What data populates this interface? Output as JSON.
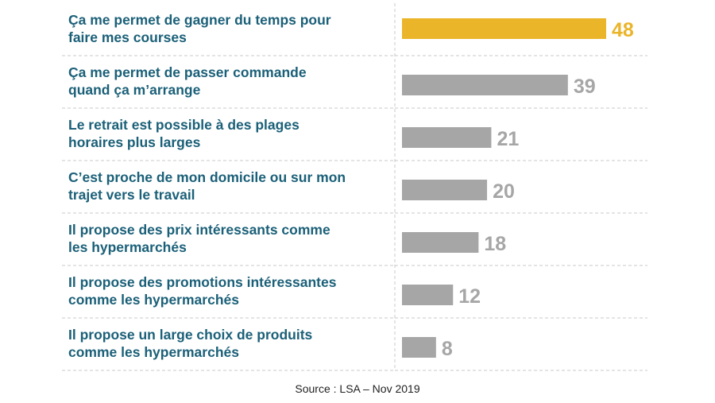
{
  "chart_data": {
    "type": "bar",
    "orientation": "horizontal",
    "categories": [
      [
        "Ça me permet de gagner du temps pour",
        "faire mes courses"
      ],
      [
        "Ça me permet de passer commande",
        "quand ça m’arrange"
      ],
      [
        "Le retrait est possible à des plages",
        "horaires plus larges"
      ],
      [
        "C’est proche de mon domicile ou sur mon",
        "trajet vers le travail"
      ],
      [
        "Il propose des prix intéressants comme",
        "les hypermarchés"
      ],
      [
        "Il propose des promotions intéressantes",
        "comme les hypermarchés"
      ],
      [
        "Il propose un large choix de produits",
        "comme les hypermarchés"
      ]
    ],
    "values": [
      48,
      39,
      21,
      20,
      18,
      12,
      8
    ],
    "value_labels": [
      "48",
      "39",
      "21",
      "20",
      "18",
      "12",
      "8"
    ],
    "highlight_index": 0,
    "xlim": [
      0,
      48
    ],
    "grid": false,
    "legend": "none"
  },
  "colors": {
    "highlight": "#ebb52a",
    "bar": "#a6a6a6",
    "value_label": "#a6a6a6",
    "category_text": "#1b6078",
    "separator": "#c8c8c8"
  },
  "source": "Source : LSA – Nov 2019"
}
